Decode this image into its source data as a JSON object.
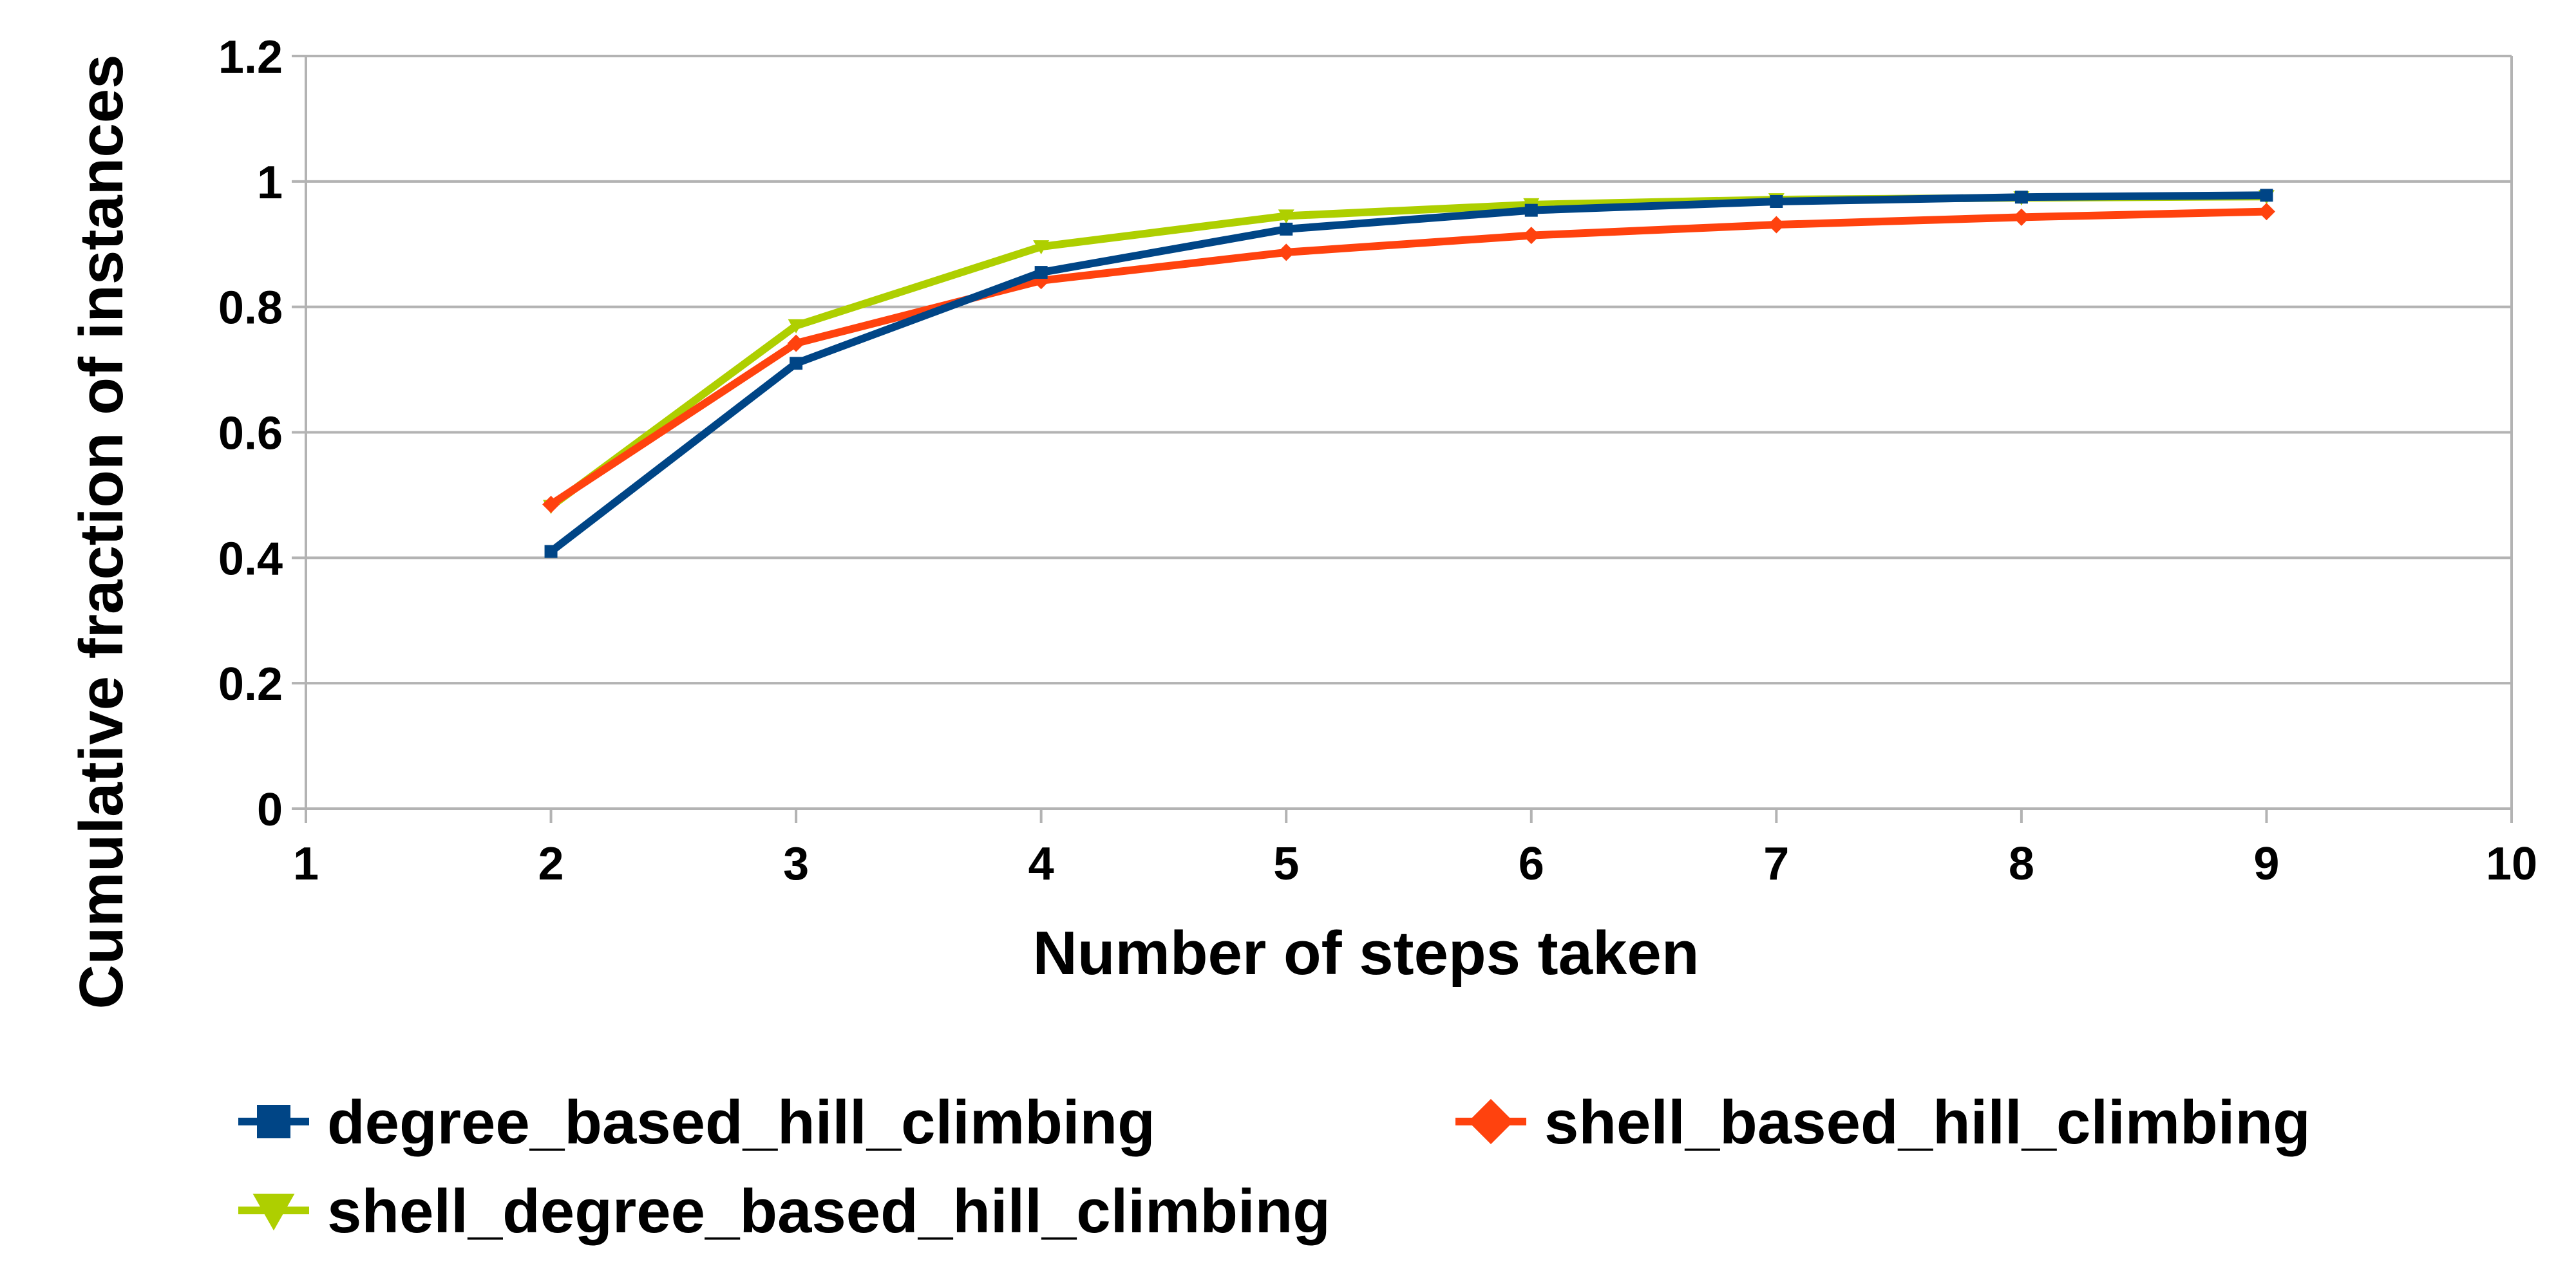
{
  "chart_data": {
    "type": "line",
    "title": "",
    "xlabel": "Number of steps taken",
    "ylabel": "Cumulative fraction of instances",
    "xlim": [
      1,
      10
    ],
    "ylim": [
      0,
      1.2
    ],
    "x_ticks": [
      "1",
      "2",
      "3",
      "4",
      "5",
      "6",
      "7",
      "8",
      "9",
      "10"
    ],
    "y_ticks": [
      "0",
      "0.2",
      "0.4",
      "0.6",
      "0.8",
      "1",
      "1.2"
    ],
    "grid": true,
    "legend_position": "bottom",
    "x": [
      2,
      3,
      4,
      5,
      6,
      7,
      8,
      9
    ],
    "series": [
      {
        "name": "degree_based_hill_climbing",
        "color": "#004586",
        "marker": "square",
        "values": [
          0.41,
          0.71,
          0.855,
          0.924,
          0.954,
          0.968,
          0.975,
          0.978
        ]
      },
      {
        "name": "shell_based_hill_climbing",
        "color": "#ff420e",
        "marker": "diamond",
        "values": [
          0.485,
          0.742,
          0.842,
          0.887,
          0.914,
          0.931,
          0.943,
          0.952
        ]
      },
      {
        "name": "shell_degree_based_hill_climbing",
        "color": "#aecf00",
        "marker": "triangle-down",
        "values": [
          0.482,
          0.77,
          0.896,
          0.945,
          0.963,
          0.971,
          0.974,
          0.976
        ]
      }
    ]
  }
}
